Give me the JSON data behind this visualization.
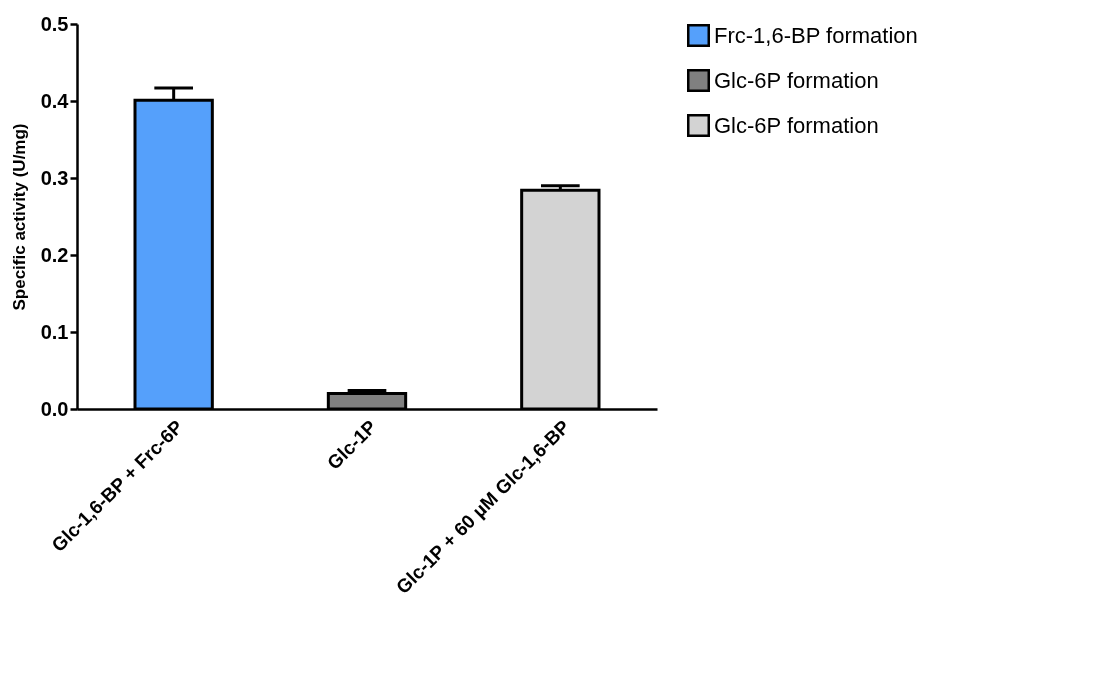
{
  "chart_data": {
    "type": "bar",
    "ylabel": "Specific activity (U/mg)",
    "categories": [
      "Glc-1,6-BP + Frc-6P",
      "Glc-1P",
      "Glc-1P + 60 µM Glc-1,6-BP"
    ],
    "series": [
      {
        "name": "Frc-1,6-BP formation",
        "color": "#55a0fb",
        "values": [
          0.401,
          null,
          null
        ],
        "errors": [
          0.016,
          null,
          null
        ]
      },
      {
        "name": "Glc-6P formation",
        "color": "#808080",
        "values": [
          null,
          0.02,
          null
        ],
        "errors": [
          null,
          0.004,
          null
        ]
      },
      {
        "name": "Glc-6P formation",
        "color": "#d3d3d3",
        "values": [
          null,
          null,
          0.284
        ],
        "errors": [
          null,
          null,
          0.006
        ]
      }
    ],
    "ylim": [
      0,
      0.5
    ],
    "yticks": [
      {
        "value": 0,
        "label": "0.0"
      },
      {
        "value": 0.1,
        "label": "0.1"
      },
      {
        "value": 0.2,
        "label": "0.2"
      },
      {
        "value": 0.3,
        "label": "0.3"
      },
      {
        "value": 0.4,
        "label": "0.4"
      },
      {
        "value": 0.5,
        "label": "0.5"
      }
    ],
    "legend": "top right"
  }
}
